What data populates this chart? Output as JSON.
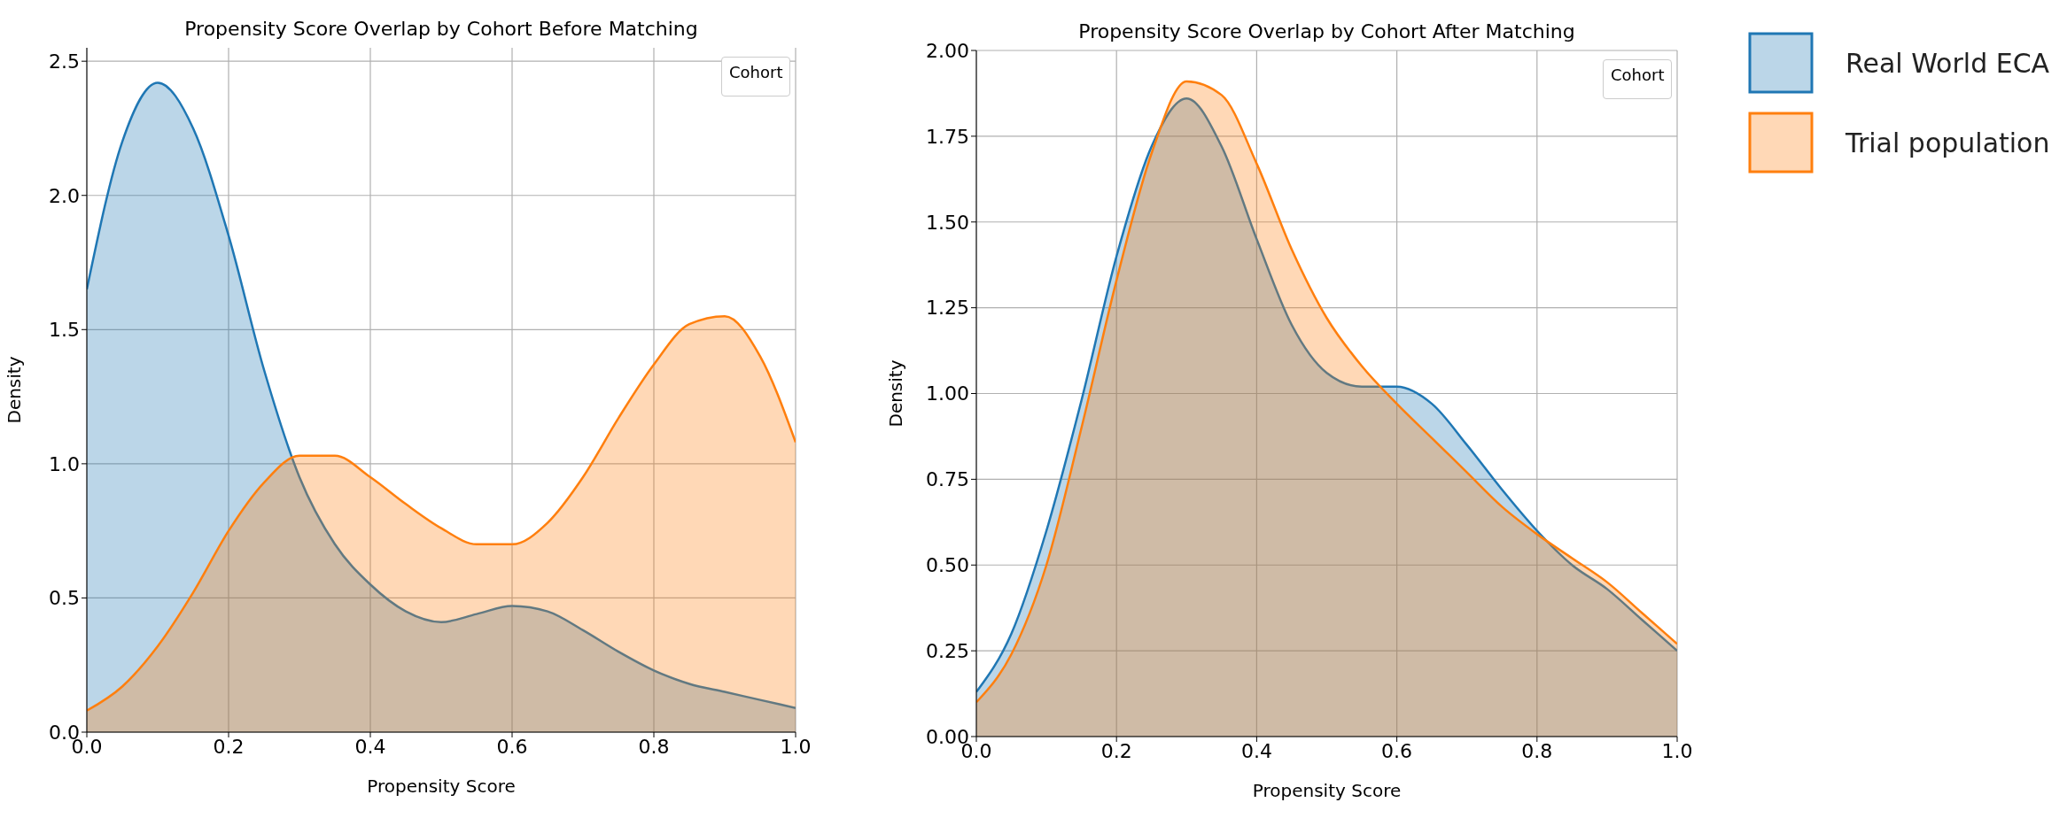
{
  "chart_data": [
    {
      "type": "area",
      "title": "Propensity Score Overlap by Cohort Before Matching",
      "xlabel": "Propensity Score",
      "ylabel": "Density",
      "legend_title": "Cohort",
      "x": [
        0,
        0.05,
        0.1,
        0.15,
        0.2,
        0.25,
        0.3,
        0.35,
        0.4,
        0.45,
        0.5,
        0.55,
        0.6,
        0.65,
        0.7,
        0.75,
        0.8,
        0.85,
        0.9,
        0.95,
        1.0
      ],
      "series": [
        {
          "color": "#1f77b4",
          "values": [
            1.65,
            2.2,
            2.42,
            2.25,
            1.85,
            1.35,
            0.95,
            0.7,
            0.55,
            0.45,
            0.41,
            0.44,
            0.47,
            0.45,
            0.38,
            0.3,
            0.23,
            0.18,
            0.15,
            0.12,
            0.09
          ]
        },
        {
          "color": "#ff7f0e",
          "values": [
            0.08,
            0.17,
            0.32,
            0.52,
            0.75,
            0.93,
            1.03,
            1.03,
            0.95,
            0.85,
            0.76,
            0.7,
            0.7,
            0.78,
            0.95,
            1.17,
            1.37,
            1.52,
            1.55,
            1.4,
            1.08
          ]
        }
      ],
      "xlim": [
        0,
        1
      ],
      "xticks": [
        {
          "value": 0,
          "label": "0.0"
        },
        {
          "value": 0.2,
          "label": "0.2"
        },
        {
          "value": 0.4,
          "label": "0.4"
        },
        {
          "value": 0.6,
          "label": "0.6"
        },
        {
          "value": 0.8,
          "label": "0.8"
        },
        {
          "value": 1,
          "label": "1.0"
        }
      ],
      "ylim": [
        0,
        2.55
      ],
      "yticks": [
        {
          "value": 0,
          "label": "0.0"
        },
        {
          "value": 0.5,
          "label": "0.5"
        },
        {
          "value": 1,
          "label": "1.0"
        },
        {
          "value": 1.5,
          "label": "1.5"
        },
        {
          "value": 2,
          "label": "2.0"
        },
        {
          "value": 2.5,
          "label": "2.5"
        }
      ],
      "grid": true
    },
    {
      "type": "area",
      "title": "Propensity Score Overlap by Cohort After Matching",
      "xlabel": "Propensity Score",
      "ylabel": "Density",
      "legend_title": "Cohort",
      "legend": "right",
      "x": [
        0,
        0.05,
        0.1,
        0.15,
        0.2,
        0.25,
        0.3,
        0.35,
        0.4,
        0.45,
        0.5,
        0.55,
        0.6,
        0.65,
        0.7,
        0.75,
        0.8,
        0.85,
        0.9,
        0.95,
        1.0
      ],
      "series": [
        {
          "name": "Real World ECA",
          "color": "#1f77b4",
          "values": [
            0.13,
            0.3,
            0.6,
            0.98,
            1.4,
            1.72,
            1.86,
            1.72,
            1.45,
            1.2,
            1.06,
            1.02,
            1.02,
            0.97,
            0.85,
            0.72,
            0.6,
            0.5,
            0.43,
            0.34,
            0.25
          ]
        },
        {
          "name": "Trial population",
          "color": "#ff7f0e",
          "values": [
            0.1,
            0.24,
            0.5,
            0.9,
            1.33,
            1.7,
            1.91,
            1.87,
            1.67,
            1.42,
            1.22,
            1.08,
            0.97,
            0.87,
            0.77,
            0.67,
            0.59,
            0.52,
            0.45,
            0.36,
            0.27
          ]
        }
      ],
      "xlim": [
        0,
        1
      ],
      "xticks": [
        {
          "value": 0,
          "label": "0.0"
        },
        {
          "value": 0.2,
          "label": "0.2"
        },
        {
          "value": 0.4,
          "label": "0.4"
        },
        {
          "value": 0.6,
          "label": "0.6"
        },
        {
          "value": 0.8,
          "label": "0.8"
        },
        {
          "value": 1,
          "label": "1.0"
        }
      ],
      "ylim": [
        0,
        2.0
      ],
      "yticks": [
        {
          "value": 0,
          "label": "0.00"
        },
        {
          "value": 0.25,
          "label": "0.25"
        },
        {
          "value": 0.5,
          "label": "0.50"
        },
        {
          "value": 0.75,
          "label": "0.75"
        },
        {
          "value": 1,
          "label": "1.00"
        },
        {
          "value": 1.25,
          "label": "1.25"
        },
        {
          "value": 1.5,
          "label": "1.50"
        },
        {
          "value": 1.75,
          "label": "1.75"
        },
        {
          "value": 2,
          "label": "2.00"
        }
      ],
      "grid": true
    }
  ]
}
